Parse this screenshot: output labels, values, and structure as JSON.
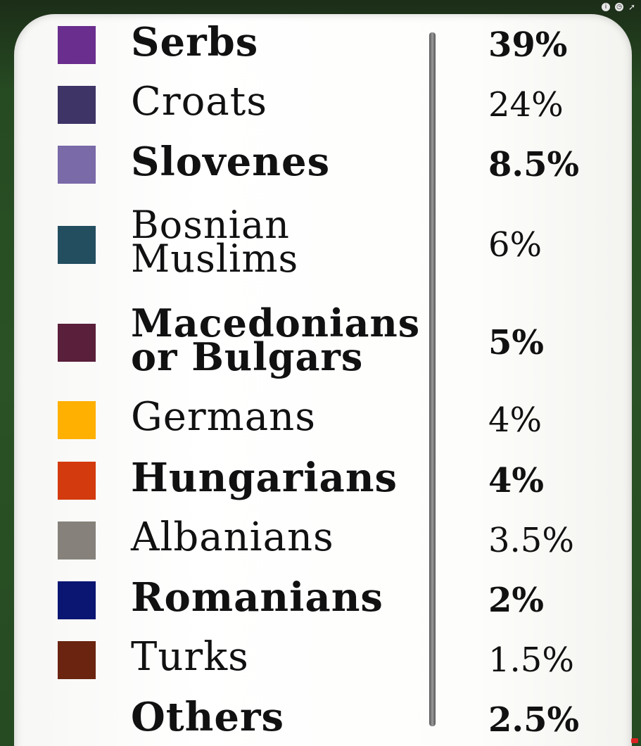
{
  "chart_data": {
    "type": "table",
    "title": "",
    "categories": [
      "Serbs",
      "Croats",
      "Slovenes",
      "Bosnian Muslims",
      "Macedonians or Bulgars",
      "Germans",
      "Hungarians",
      "Albanians",
      "Romanians",
      "Turks",
      "Others"
    ],
    "label_lines": [
      [
        "Serbs"
      ],
      [
        "Croats"
      ],
      [
        "Slovenes"
      ],
      [
        "Bosnian",
        "Muslims"
      ],
      [
        "Macedonians",
        "or Bulgars"
      ],
      [
        "Germans"
      ],
      [
        "Hungarians"
      ],
      [
        "Albanians"
      ],
      [
        "Romanians"
      ],
      [
        "Turks"
      ],
      [
        "Others"
      ]
    ],
    "values": [
      39,
      24,
      8.5,
      6,
      5,
      4,
      4,
      3.5,
      2,
      1.5,
      2.5
    ],
    "value_labels": [
      "39%",
      "24%",
      "8.5%",
      "6%",
      "5%",
      "4%",
      "4%",
      "3.5%",
      "2%",
      "1.5%",
      "2.5%"
    ],
    "colors": [
      "#6a2e8e",
      "#3f3466",
      "#7a6aa8",
      "#234e60",
      "#5a1f3a",
      "#ffb000",
      "#d33a0e",
      "#86827b",
      "#0a1672",
      "#6a2410",
      null
    ],
    "bold": [
      true,
      false,
      true,
      false,
      true,
      false,
      true,
      false,
      true,
      false,
      true
    ]
  },
  "overlay": {
    "icons": [
      "info-icon",
      "clock-icon",
      "share-arrow-icon"
    ]
  }
}
